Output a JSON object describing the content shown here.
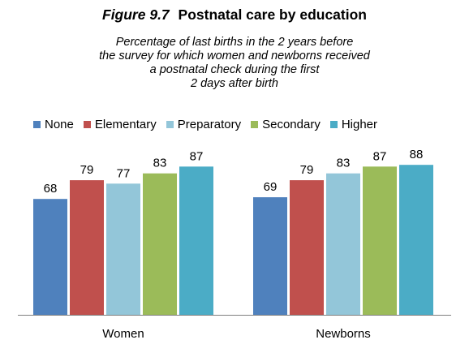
{
  "figure": {
    "label": "Figure 9.7",
    "title": "Postnatal care by education",
    "subtitle_lines": [
      "Percentage of last births in the 2 years before",
      "the survey for which women and newborns received",
      "a postnatal check during the first",
      "2 days after birth"
    ]
  },
  "chart_data": {
    "type": "bar",
    "categories": [
      "Women",
      "Newborns"
    ],
    "series": [
      {
        "name": "None",
        "color": "#4f81bd",
        "values": [
          68,
          69
        ]
      },
      {
        "name": "Elementary",
        "color": "#c0504d",
        "values": [
          79,
          79
        ]
      },
      {
        "name": "Preparatory",
        "color": "#93c6d9",
        "values": [
          77,
          83
        ]
      },
      {
        "name": "Secondary",
        "color": "#9bbb59",
        "values": [
          83,
          87
        ]
      },
      {
        "name": "Higher",
        "color": "#4bacc6",
        "values": [
          87,
          88
        ]
      }
    ],
    "ylim": [
      0,
      100
    ],
    "grid": false,
    "legend_position": "top"
  }
}
